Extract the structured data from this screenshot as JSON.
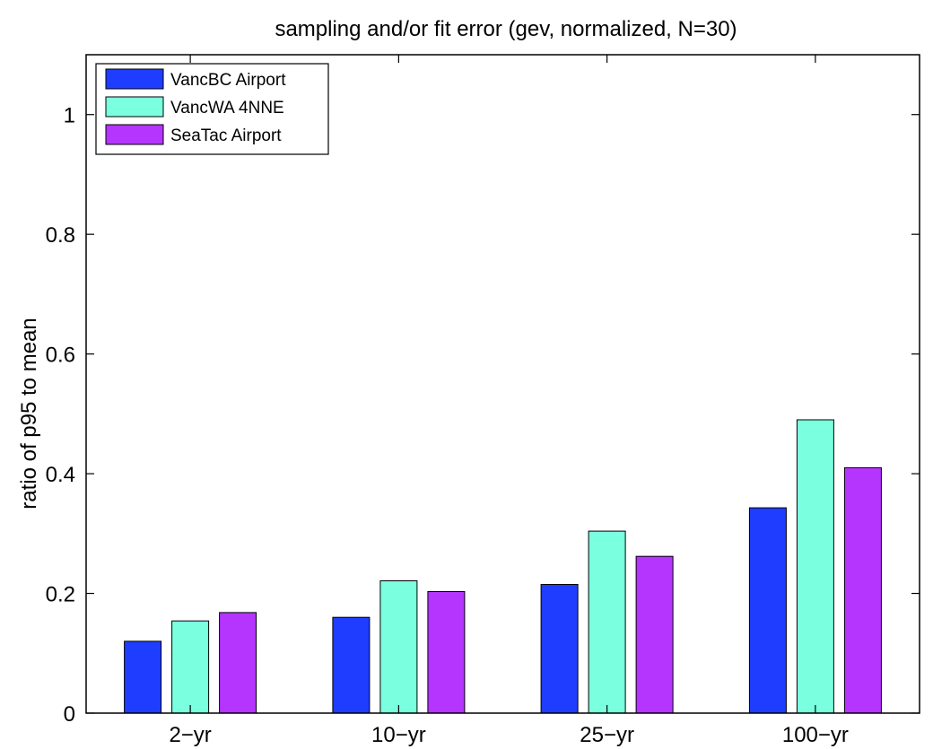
{
  "chart_data": {
    "type": "bar",
    "title": "sampling and/or fit error (gev, normalized, N=30)",
    "xlabel": "",
    "ylabel": "ratio of p95 to mean",
    "categories": [
      "2−yr",
      "10−yr",
      "25−yr",
      "100−yr"
    ],
    "ylim": [
      0,
      1.1
    ],
    "yticks": [
      0,
      0.2,
      0.4,
      0.6,
      0.8,
      1
    ],
    "ytick_labels": [
      "0",
      "0.2",
      "0.4",
      "0.6",
      "0.8",
      "1"
    ],
    "grid": false,
    "legend_position": "top-left",
    "series": [
      {
        "name": "VancBC Airport",
        "color": "#1f3dff",
        "values": [
          0.12,
          0.16,
          0.215,
          0.343
        ]
      },
      {
        "name": "VancWA 4NNE",
        "color": "#7affdf",
        "values": [
          0.154,
          0.221,
          0.304,
          0.49
        ]
      },
      {
        "name": "SeaTac Airport",
        "color": "#b535ff",
        "values": [
          0.168,
          0.203,
          0.262,
          0.41
        ]
      }
    ]
  }
}
